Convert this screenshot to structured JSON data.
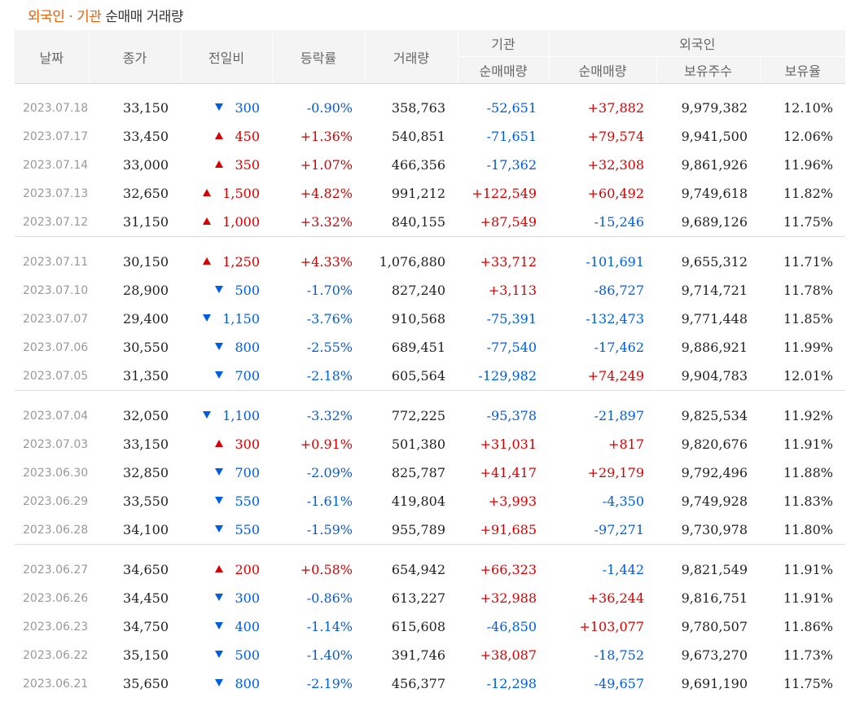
{
  "title": {
    "accent": "외국인 · 기관",
    "rest": "순매매 거래량"
  },
  "headers": {
    "date": "날짜",
    "close": "종가",
    "change": "전일비",
    "rate": "등락률",
    "volume": "거래량",
    "inst_group": "기관",
    "foreign_group": "외국인",
    "inst_net": "순매매량",
    "foreign_net": "순매매량",
    "holdings": "보유주수",
    "ratio": "보유율"
  },
  "colors": {
    "up": "#d60000",
    "down": "#005dde",
    "accent": "#e8620a"
  },
  "rows": [
    {
      "date": "2023.07.18",
      "close": "33,150",
      "dir": "down",
      "change": "300",
      "rate": "-0.90%",
      "volume": "358,763",
      "inst": "-52,651",
      "foreign": "+37,882",
      "holdings": "9,979,382",
      "ratio": "12.10%"
    },
    {
      "date": "2023.07.17",
      "close": "33,450",
      "dir": "up",
      "change": "450",
      "rate": "+1.36%",
      "volume": "540,851",
      "inst": "-71,651",
      "foreign": "+79,574",
      "holdings": "9,941,500",
      "ratio": "12.06%"
    },
    {
      "date": "2023.07.14",
      "close": "33,000",
      "dir": "up",
      "change": "350",
      "rate": "+1.07%",
      "volume": "466,356",
      "inst": "-17,362",
      "foreign": "+32,308",
      "holdings": "9,861,926",
      "ratio": "11.96%"
    },
    {
      "date": "2023.07.13",
      "close": "32,650",
      "dir": "up",
      "change": "1,500",
      "rate": "+4.82%",
      "volume": "991,212",
      "inst": "+122,549",
      "foreign": "+60,492",
      "holdings": "9,749,618",
      "ratio": "11.82%"
    },
    {
      "date": "2023.07.12",
      "close": "31,150",
      "dir": "up",
      "change": "1,000",
      "rate": "+3.32%",
      "volume": "840,155",
      "inst": "+87,549",
      "foreign": "-15,246",
      "holdings": "9,689,126",
      "ratio": "11.75%"
    },
    {
      "date": "2023.07.11",
      "close": "30,150",
      "dir": "up",
      "change": "1,250",
      "rate": "+4.33%",
      "volume": "1,076,880",
      "inst": "+33,712",
      "foreign": "-101,691",
      "holdings": "9,655,312",
      "ratio": "11.71%"
    },
    {
      "date": "2023.07.10",
      "close": "28,900",
      "dir": "down",
      "change": "500",
      "rate": "-1.70%",
      "volume": "827,240",
      "inst": "+3,113",
      "foreign": "-86,727",
      "holdings": "9,714,721",
      "ratio": "11.78%"
    },
    {
      "date": "2023.07.07",
      "close": "29,400",
      "dir": "down",
      "change": "1,150",
      "rate": "-3.76%",
      "volume": "910,568",
      "inst": "-75,391",
      "foreign": "-132,473",
      "holdings": "9,771,448",
      "ratio": "11.85%"
    },
    {
      "date": "2023.07.06",
      "close": "30,550",
      "dir": "down",
      "change": "800",
      "rate": "-2.55%",
      "volume": "689,451",
      "inst": "-77,540",
      "foreign": "-17,462",
      "holdings": "9,886,921",
      "ratio": "11.99%"
    },
    {
      "date": "2023.07.05",
      "close": "31,350",
      "dir": "down",
      "change": "700",
      "rate": "-2.18%",
      "volume": "605,564",
      "inst": "-129,982",
      "foreign": "+74,249",
      "holdings": "9,904,783",
      "ratio": "12.01%"
    },
    {
      "date": "2023.07.04",
      "close": "32,050",
      "dir": "down",
      "change": "1,100",
      "rate": "-3.32%",
      "volume": "772,225",
      "inst": "-95,378",
      "foreign": "-21,897",
      "holdings": "9,825,534",
      "ratio": "11.92%"
    },
    {
      "date": "2023.07.03",
      "close": "33,150",
      "dir": "up",
      "change": "300",
      "rate": "+0.91%",
      "volume": "501,380",
      "inst": "+31,031",
      "foreign": "+817",
      "holdings": "9,820,676",
      "ratio": "11.91%"
    },
    {
      "date": "2023.06.30",
      "close": "32,850",
      "dir": "down",
      "change": "700",
      "rate": "-2.09%",
      "volume": "825,787",
      "inst": "+41,417",
      "foreign": "+29,179",
      "holdings": "9,792,496",
      "ratio": "11.88%"
    },
    {
      "date": "2023.06.29",
      "close": "33,550",
      "dir": "down",
      "change": "550",
      "rate": "-1.61%",
      "volume": "419,804",
      "inst": "+3,993",
      "foreign": "-4,350",
      "holdings": "9,749,928",
      "ratio": "11.83%"
    },
    {
      "date": "2023.06.28",
      "close": "34,100",
      "dir": "down",
      "change": "550",
      "rate": "-1.59%",
      "volume": "955,789",
      "inst": "+91,685",
      "foreign": "-97,271",
      "holdings": "9,730,978",
      "ratio": "11.80%"
    },
    {
      "date": "2023.06.27",
      "close": "34,650",
      "dir": "up",
      "change": "200",
      "rate": "+0.58%",
      "volume": "654,942",
      "inst": "+66,323",
      "foreign": "-1,442",
      "holdings": "9,821,549",
      "ratio": "11.91%"
    },
    {
      "date": "2023.06.26",
      "close": "34,450",
      "dir": "down",
      "change": "300",
      "rate": "-0.86%",
      "volume": "613,227",
      "inst": "+32,988",
      "foreign": "+36,244",
      "holdings": "9,816,751",
      "ratio": "11.91%"
    },
    {
      "date": "2023.06.23",
      "close": "34,750",
      "dir": "down",
      "change": "400",
      "rate": "-1.14%",
      "volume": "615,608",
      "inst": "-46,850",
      "foreign": "+103,077",
      "holdings": "9,780,507",
      "ratio": "11.86%"
    },
    {
      "date": "2023.06.22",
      "close": "35,150",
      "dir": "down",
      "change": "500",
      "rate": "-1.40%",
      "volume": "391,746",
      "inst": "+38,087",
      "foreign": "-18,752",
      "holdings": "9,673,270",
      "ratio": "11.73%"
    },
    {
      "date": "2023.06.21",
      "close": "35,650",
      "dir": "down",
      "change": "800",
      "rate": "-2.19%",
      "volume": "456,377",
      "inst": "-12,298",
      "foreign": "-49,657",
      "holdings": "9,691,190",
      "ratio": "11.75%"
    }
  ]
}
